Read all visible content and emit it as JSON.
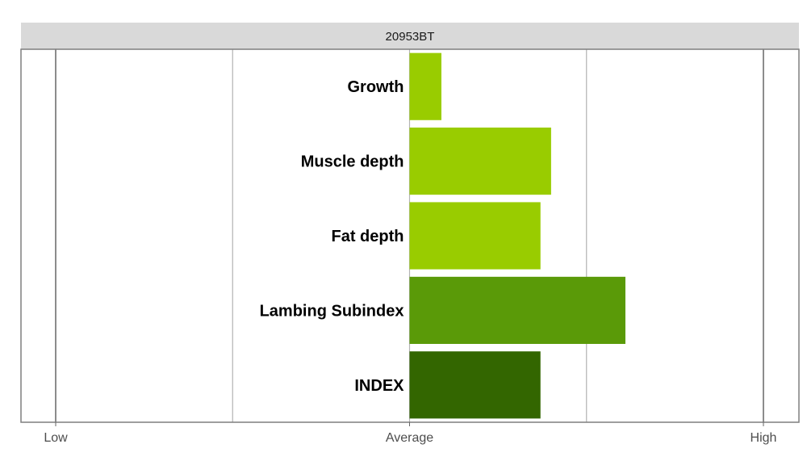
{
  "chart_data": {
    "type": "bar",
    "orientation": "horizontal",
    "title": "20953BT",
    "categories": [
      "Growth",
      "Muscle depth",
      "Fat depth",
      "Lambing Subindex",
      "INDEX"
    ],
    "values": [
      0.09,
      0.4,
      0.37,
      0.61,
      0.37
    ],
    "bar_colors": [
      "#99cc00",
      "#99cc00",
      "#99cc00",
      "#5a9a08",
      "#336600"
    ],
    "xlim": [
      -1,
      1
    ],
    "x_ticks": [
      {
        "value": -1,
        "label": "Low"
      },
      {
        "value": 0,
        "label": "Average"
      },
      {
        "value": 1,
        "label": "High"
      }
    ],
    "grid": true,
    "legend": "none"
  },
  "colors": {
    "strip_background": "#d9d9d9",
    "panel_border": "#7f7f7f",
    "gridline": "#b3b3b3",
    "major_line": "#666666"
  }
}
